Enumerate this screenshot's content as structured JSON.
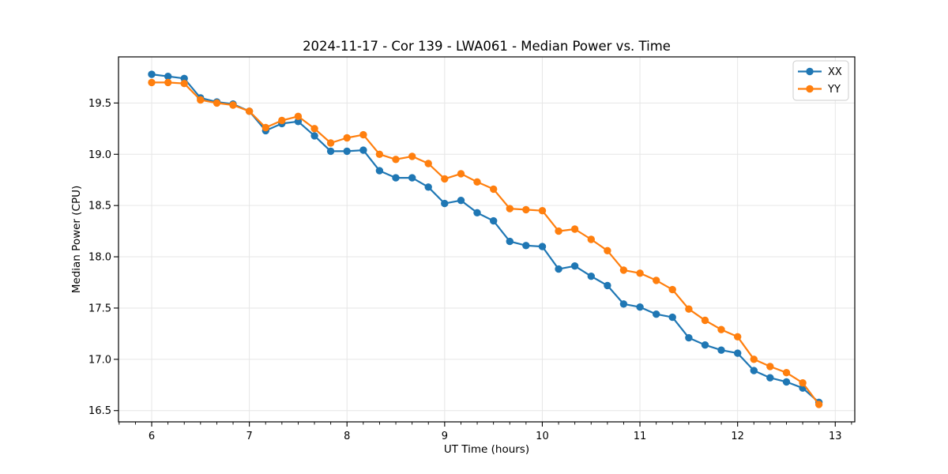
{
  "title": "2024-11-17 - Cor 139 - LWA061 - Median Power vs. Time",
  "chart_data": {
    "type": "line",
    "title": "2024-11-17 - Cor 139 - LWA061 - Median Power vs. Time",
    "xlabel": "UT Time (hours)",
    "ylabel": "Median Power (CPU)",
    "xlim": [
      5.66,
      13.2
    ],
    "ylim": [
      16.39,
      19.95
    ],
    "xticks": [
      6,
      7,
      8,
      9,
      10,
      11,
      12,
      13
    ],
    "yticks": [
      16.5,
      17.0,
      17.5,
      18.0,
      18.5,
      19.0,
      19.5
    ],
    "minor_tick_step_hours": 0.1667,
    "grid": true,
    "grid_color": "#e6e6e6",
    "legend_position": "upper right",
    "x": [
      6.0,
      6.167,
      6.333,
      6.5,
      6.667,
      6.833,
      7.0,
      7.167,
      7.333,
      7.5,
      7.667,
      7.833,
      8.0,
      8.167,
      8.333,
      8.5,
      8.667,
      8.833,
      9.0,
      9.167,
      9.333,
      9.5,
      9.667,
      9.833,
      10.0,
      10.167,
      10.333,
      10.5,
      10.667,
      10.833,
      11.0,
      11.167,
      11.333,
      11.5,
      11.667,
      11.833,
      12.0,
      12.167,
      12.333,
      12.5,
      12.667,
      12.833
    ],
    "series": [
      {
        "name": "XX",
        "color": "#1f77b4",
        "marker": "circle",
        "values": [
          19.78,
          19.76,
          19.74,
          19.55,
          19.51,
          19.49,
          19.42,
          19.23,
          19.3,
          19.32,
          19.18,
          19.03,
          19.03,
          19.04,
          18.84,
          18.77,
          18.77,
          18.68,
          18.52,
          18.55,
          18.43,
          18.35,
          18.15,
          18.11,
          18.1,
          17.88,
          17.91,
          17.81,
          17.72,
          17.54,
          17.51,
          17.44,
          17.41,
          17.21,
          17.14,
          17.09,
          17.06,
          16.89,
          16.82,
          16.78,
          16.72,
          16.58
        ]
      },
      {
        "name": "YY",
        "color": "#ff7f0e",
        "marker": "circle",
        "values": [
          19.7,
          19.7,
          19.69,
          19.53,
          19.5,
          19.48,
          19.42,
          19.26,
          19.33,
          19.37,
          19.25,
          19.11,
          19.16,
          19.19,
          19.0,
          18.95,
          18.98,
          18.91,
          18.76,
          18.81,
          18.73,
          18.66,
          18.47,
          18.46,
          18.45,
          18.25,
          18.27,
          18.17,
          18.06,
          17.87,
          17.84,
          17.77,
          17.68,
          17.49,
          17.38,
          17.29,
          17.22,
          17.0,
          16.93,
          16.87,
          16.77,
          16.56
        ]
      }
    ]
  }
}
